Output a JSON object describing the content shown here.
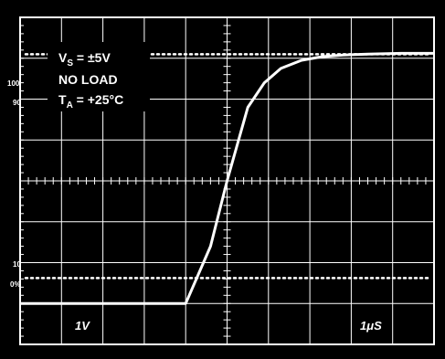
{
  "chart_data": {
    "type": "line",
    "title": "",
    "annotations": {
      "supply_main": "V",
      "supply_sub": "S",
      "supply_value": " = ±5V",
      "load": "NO LOAD",
      "temp_main": "T",
      "temp_sub": "A",
      "temp_value": " = +25°C",
      "vertical_scale": "1V",
      "horizontal_scale": "1μS"
    },
    "reference_labels": [
      "100",
      "90",
      "10",
      "0%"
    ],
    "grid": true,
    "x_divisions": 10,
    "y_divisions": 8,
    "xlim": [
      0,
      10
    ],
    "ylim": [
      -4,
      4
    ],
    "series": [
      {
        "x": [
          0,
          4,
          4.6,
          5.0,
          5.5,
          5.9,
          6.3,
          6.8,
          7.3,
          7.8,
          8.4,
          9.2,
          10
        ],
        "values": [
          -3.0,
          -3.0,
          -1.6,
          0.0,
          1.8,
          2.4,
          2.75,
          2.95,
          3.04,
          3.08,
          3.1,
          3.12,
          3.12
        ]
      }
    ],
    "colors": {
      "background": "#000000",
      "grid": "#ffffff",
      "trace": "#ffffff",
      "frame": "#ffffff"
    }
  }
}
